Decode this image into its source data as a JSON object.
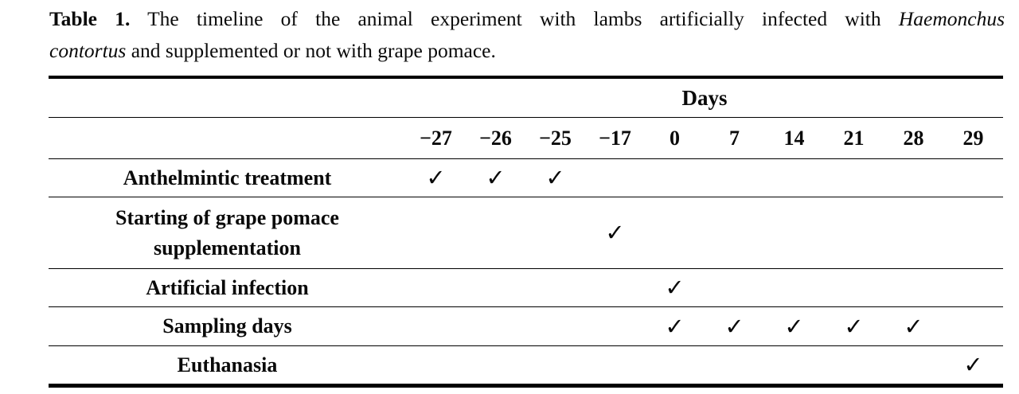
{
  "caption": {
    "label": "Table 1.",
    "line1_text": "The timeline of the animal experiment with lambs artificially infected with",
    "line1_italic": "Haemonchus",
    "line2_italic": "contortus",
    "line2_text": "and supplemented or not with grape pomace."
  },
  "table": {
    "days_header": "Days",
    "day_columns": [
      "−27",
      "−26",
      "−25",
      "−17",
      "0",
      "7",
      "14",
      "21",
      "28",
      "29"
    ],
    "check_symbol": "✓",
    "rows": [
      {
        "label": "Anthelmintic treatment",
        "checked_days": [
          "−27",
          "−26",
          "−25"
        ]
      },
      {
        "label": "Starting of grape pomace supplementation",
        "checked_days": [
          "−17"
        ]
      },
      {
        "label": "Artificial infection",
        "checked_days": [
          "0"
        ]
      },
      {
        "label": "Sampling days",
        "checked_days": [
          "0",
          "7",
          "14",
          "21",
          "28"
        ]
      },
      {
        "label": "Euthanasia",
        "checked_days": [
          "29"
        ]
      }
    ]
  },
  "colors": {
    "text": "#0a0a0a",
    "background": "#ffffff",
    "rule": "#000000"
  }
}
